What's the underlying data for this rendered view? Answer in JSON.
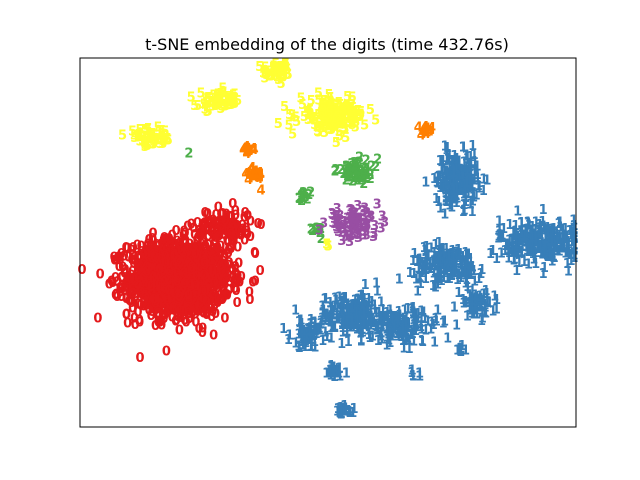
{
  "chart_data": {
    "type": "scatter",
    "title": "t-SNE embedding of the digits (time 432.76s)",
    "xlabel": "",
    "ylabel": "",
    "xlim": [
      0,
      1
    ],
    "ylim": [
      0,
      1
    ],
    "axis_ticks": "none",
    "grid": false,
    "marker": "digit-text",
    "colors": {
      "0": "#e41a1c",
      "1": "#377eb8",
      "2": "#4daf4a",
      "3": "#984ea3",
      "4": "#ff7f00",
      "5": "#ffff33"
    },
    "clusters": [
      {
        "label": "0",
        "center": [
          0.2,
          0.4
        ],
        "spread": [
          0.085,
          0.085
        ],
        "count": 1400
      },
      {
        "label": "0",
        "center": [
          0.29,
          0.54
        ],
        "spread": [
          0.05,
          0.04
        ],
        "count": 120
      },
      {
        "label": "1",
        "center": [
          0.76,
          0.67
        ],
        "spread": [
          0.035,
          0.06
        ],
        "count": 220
      },
      {
        "label": "1",
        "center": [
          0.93,
          0.5
        ],
        "spread": [
          0.07,
          0.05
        ],
        "count": 260
      },
      {
        "label": "1",
        "center": [
          0.74,
          0.44
        ],
        "spread": [
          0.06,
          0.04
        ],
        "count": 180
      },
      {
        "label": "1",
        "center": [
          0.55,
          0.3
        ],
        "spread": [
          0.06,
          0.05
        ],
        "count": 200
      },
      {
        "label": "1",
        "center": [
          0.65,
          0.27
        ],
        "spread": [
          0.06,
          0.04
        ],
        "count": 150
      },
      {
        "label": "1",
        "center": [
          0.8,
          0.33
        ],
        "spread": [
          0.03,
          0.03
        ],
        "count": 60
      },
      {
        "label": "1",
        "center": [
          0.46,
          0.25
        ],
        "spread": [
          0.03,
          0.03
        ],
        "count": 50
      },
      {
        "label": "1",
        "center": [
          0.51,
          0.15
        ],
        "spread": [
          0.02,
          0.02
        ],
        "count": 30
      },
      {
        "label": "1",
        "center": [
          0.53,
          0.04
        ],
        "spread": [
          0.02,
          0.01
        ],
        "count": 25
      },
      {
        "label": "1",
        "center": [
          0.67,
          0.14
        ],
        "spread": [
          0.01,
          0.01
        ],
        "count": 6
      },
      {
        "label": "1",
        "center": [
          0.77,
          0.21
        ],
        "spread": [
          0.01,
          0.01
        ],
        "count": 8
      },
      {
        "label": "2",
        "center": [
          0.56,
          0.69
        ],
        "spread": [
          0.035,
          0.025
        ],
        "count": 60
      },
      {
        "label": "2",
        "center": [
          0.45,
          0.62
        ],
        "spread": [
          0.012,
          0.012
        ],
        "count": 14
      },
      {
        "label": "2",
        "center": [
          0.48,
          0.53
        ],
        "spread": [
          0.012,
          0.012
        ],
        "count": 10
      },
      {
        "label": "2",
        "center": [
          0.22,
          0.74
        ],
        "spread": [
          0.001,
          0.001
        ],
        "count": 1
      },
      {
        "label": "3",
        "center": [
          0.55,
          0.55
        ],
        "spread": [
          0.045,
          0.03
        ],
        "count": 90
      },
      {
        "label": "4",
        "center": [
          0.35,
          0.68
        ],
        "spread": [
          0.015,
          0.02
        ],
        "count": 22
      },
      {
        "label": "4",
        "center": [
          0.34,
          0.75
        ],
        "spread": [
          0.012,
          0.01
        ],
        "count": 12
      },
      {
        "label": "4",
        "center": [
          0.7,
          0.8
        ],
        "spread": [
          0.01,
          0.01
        ],
        "count": 12
      },
      {
        "label": "5",
        "center": [
          0.14,
          0.78
        ],
        "spread": [
          0.04,
          0.02
        ],
        "count": 50
      },
      {
        "label": "5",
        "center": [
          0.28,
          0.88
        ],
        "spread": [
          0.035,
          0.02
        ],
        "count": 60
      },
      {
        "label": "5",
        "center": [
          0.4,
          0.96
        ],
        "spread": [
          0.025,
          0.02
        ],
        "count": 45
      },
      {
        "label": "5",
        "center": [
          0.51,
          0.84
        ],
        "spread": [
          0.055,
          0.035
        ],
        "count": 170
      },
      {
        "label": "5",
        "center": [
          0.5,
          0.49
        ],
        "spread": [
          0.005,
          0.005
        ],
        "count": 4
      }
    ]
  }
}
